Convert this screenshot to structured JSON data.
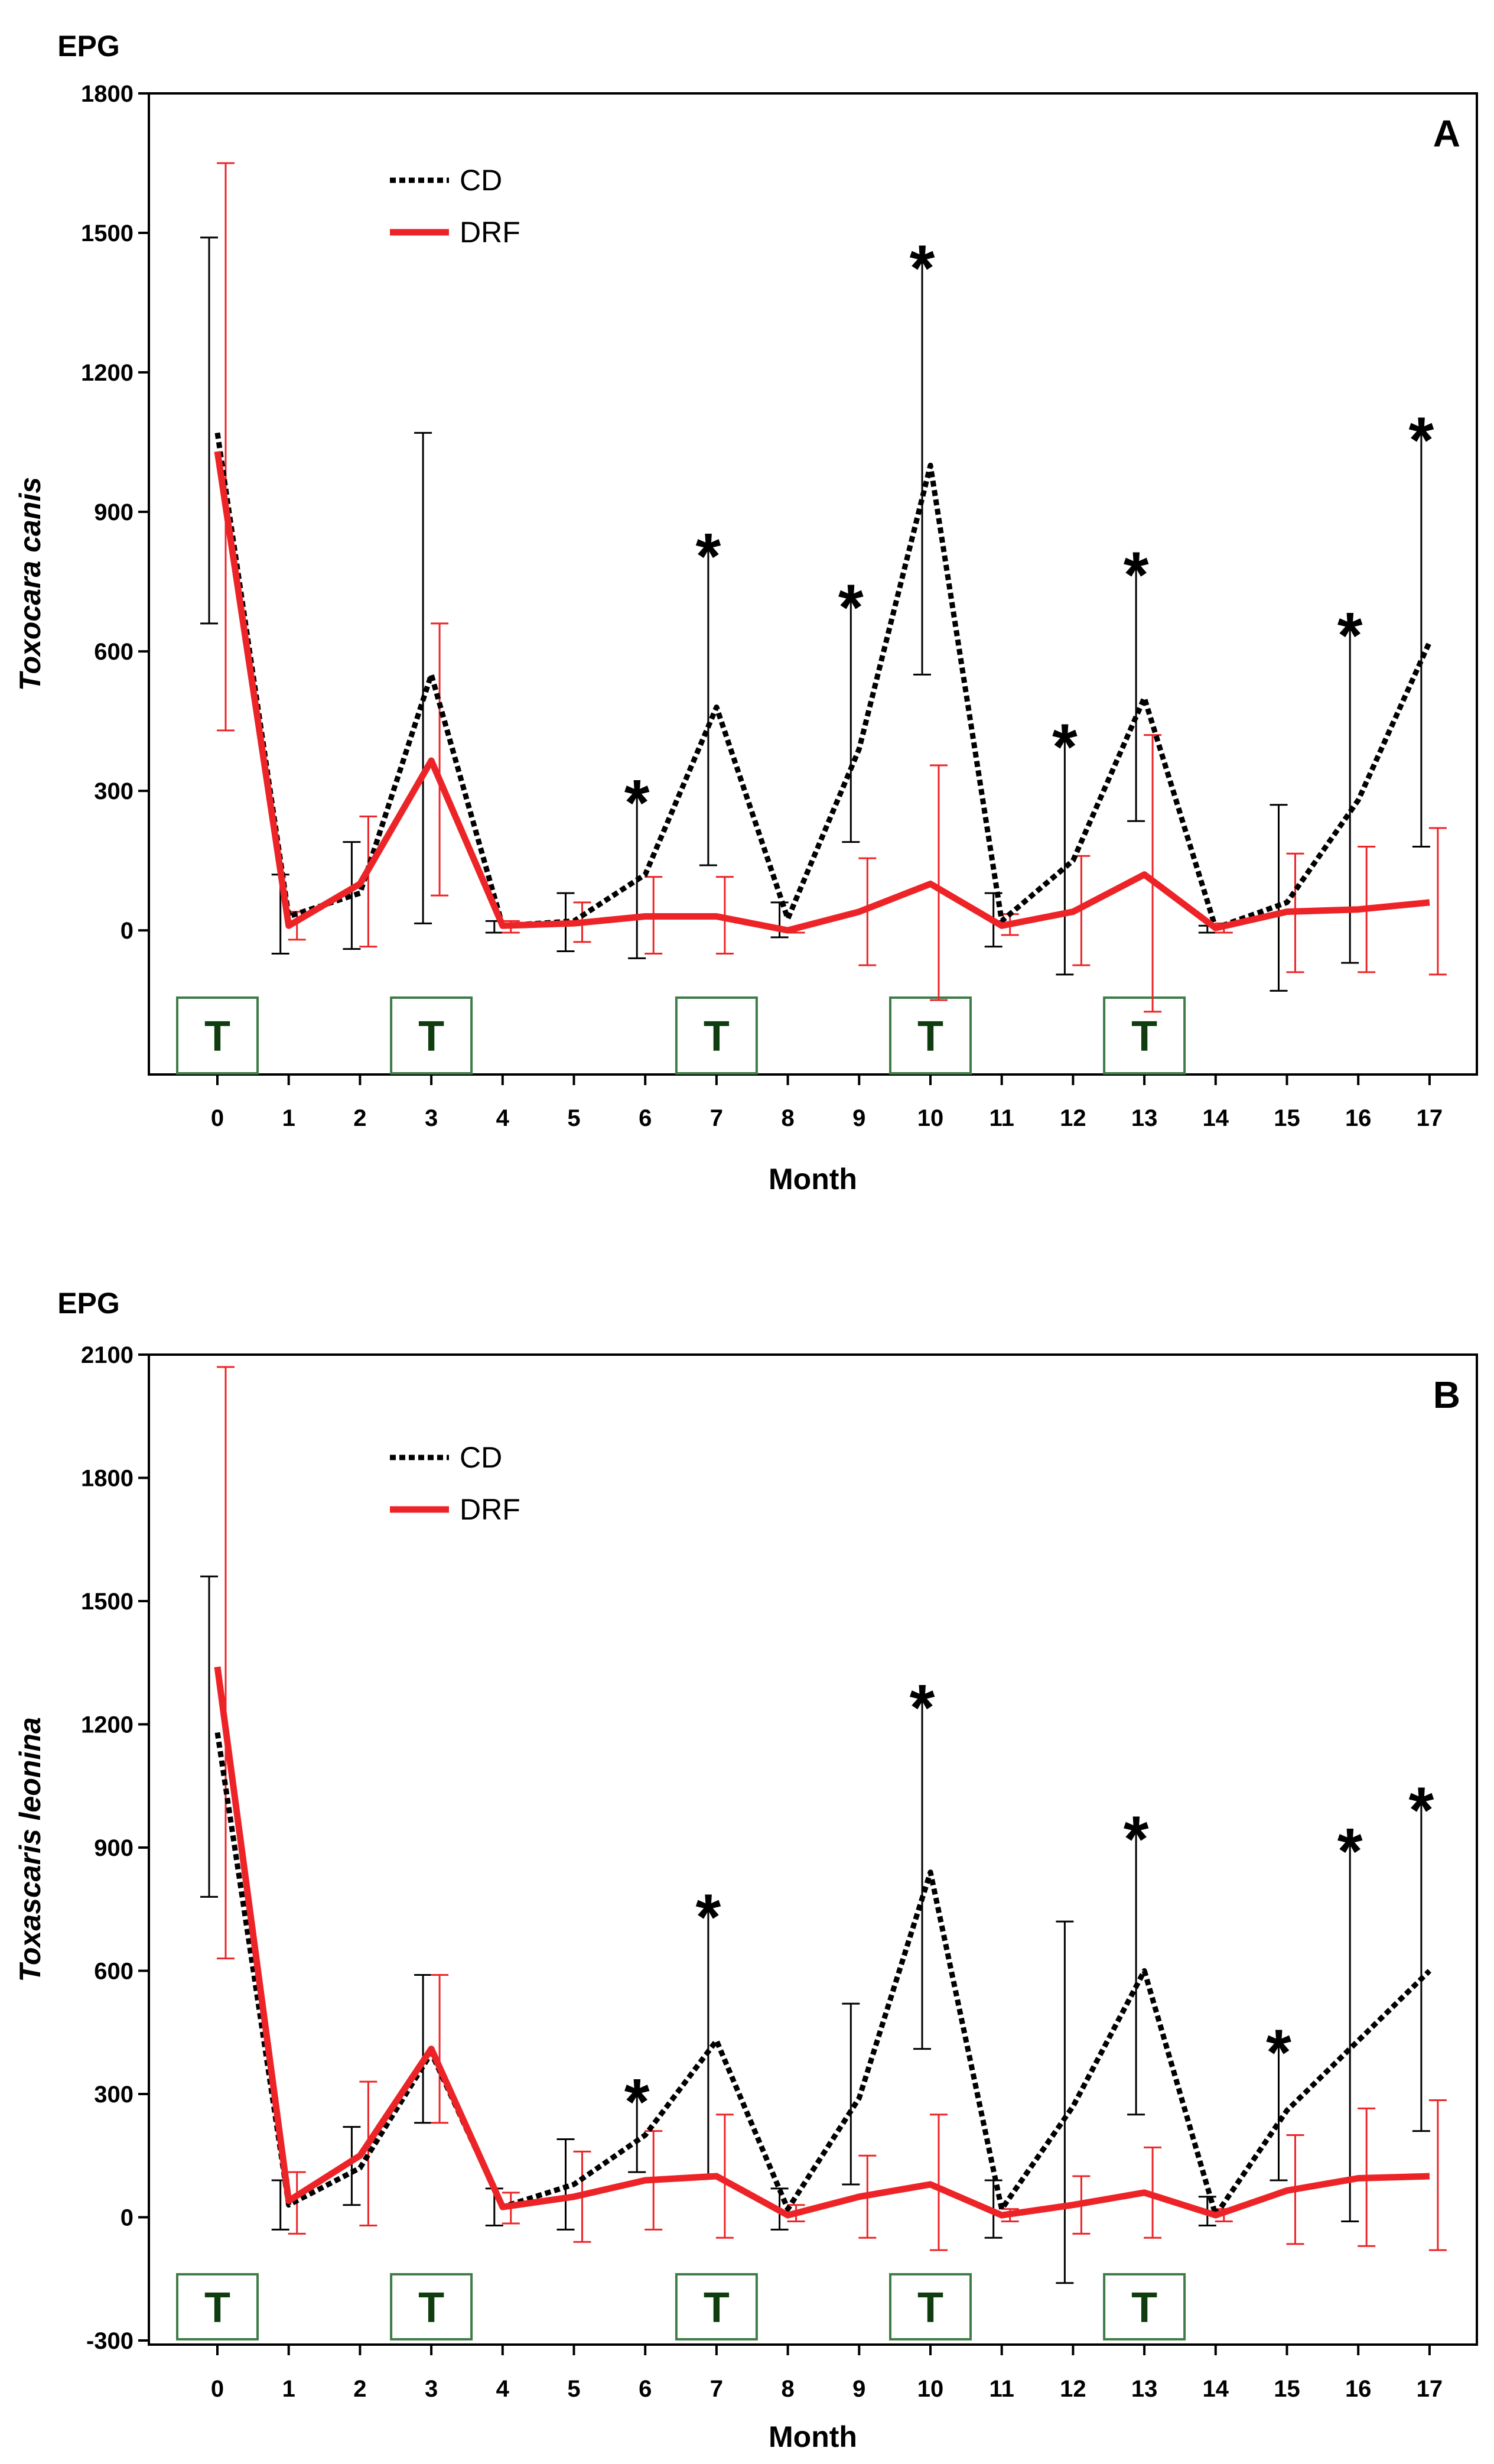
{
  "chart_data": [
    {
      "type": "line",
      "panel_label": "A",
      "unit_label": "EPG",
      "ylabel": "Toxocara canis",
      "xlabel": "Month",
      "x": [
        0,
        1,
        2,
        3,
        4,
        5,
        6,
        7,
        8,
        9,
        10,
        11,
        12,
        13,
        14,
        15,
        16,
        17
      ],
      "ylim": [
        -310,
        1800
      ],
      "yticks": [
        0,
        300,
        600,
        900,
        1200,
        1500,
        1800
      ],
      "grid": false,
      "legend": "top-left",
      "series": [
        {
          "name": "CD",
          "color": "#000000",
          "dash": "dotted",
          "values": [
            1070,
            30,
            80,
            550,
            10,
            20,
            120,
            480,
            25,
            390,
            1000,
            20,
            150,
            500,
            5,
            60,
            280,
            620
          ],
          "err_low": [
            660,
            -50,
            -40,
            15,
            -5,
            -45,
            -60,
            140,
            -15,
            190,
            550,
            -35,
            -95,
            235,
            -5,
            -130,
            -70,
            180
          ],
          "err_high": [
            1490,
            120,
            190,
            1070,
            20,
            80,
            300,
            830,
            60,
            720,
            1450,
            80,
            420,
            790,
            10,
            270,
            660,
            1080
          ]
        },
        {
          "name": "DRF",
          "color": "#ed2427",
          "dash": "solid",
          "values": [
            1030,
            10,
            100,
            365,
            10,
            15,
            30,
            30,
            0,
            40,
            100,
            10,
            40,
            120,
            5,
            40,
            45,
            60
          ],
          "err_low": [
            430,
            -20,
            -35,
            75,
            -5,
            -25,
            -50,
            -50,
            -5,
            -75,
            -150,
            -10,
            -75,
            -175,
            -5,
            -90,
            -90,
            -95
          ],
          "err_high": [
            1650,
            40,
            245,
            660,
            20,
            60,
            115,
            115,
            5,
            155,
            355,
            35,
            160,
            420,
            15,
            165,
            180,
            220
          ]
        }
      ],
      "significance_marker": "*",
      "significant_months": [
        6,
        7,
        9,
        10,
        12,
        13,
        16,
        17
      ],
      "treatment_marker": "T",
      "treatment_months": [
        0,
        3,
        7,
        10,
        13
      ]
    },
    {
      "type": "line",
      "panel_label": "B",
      "unit_label": "EPG",
      "ylabel": "Toxascaris leonina",
      "xlabel": "Month",
      "x": [
        0,
        1,
        2,
        3,
        4,
        5,
        6,
        7,
        8,
        9,
        10,
        11,
        12,
        13,
        14,
        15,
        16,
        17
      ],
      "ylim": [
        -310,
        2100
      ],
      "yticks": [
        -300,
        0,
        300,
        600,
        900,
        1200,
        1500,
        1800,
        2100
      ],
      "grid": false,
      "legend": "top-left",
      "series": [
        {
          "name": "CD",
          "color": "#000000",
          "dash": "dotted",
          "values": [
            1180,
            30,
            120,
            400,
            25,
            80,
            200,
            430,
            20,
            290,
            840,
            20,
            270,
            600,
            5,
            260,
            430,
            600
          ],
          "err_low": [
            780,
            -30,
            30,
            230,
            -20,
            -30,
            110,
            100,
            -30,
            80,
            410,
            -50,
            -160,
            250,
            -20,
            90,
            -10,
            210
          ],
          "err_high": [
            1560,
            90,
            220,
            590,
            70,
            190,
            310,
            760,
            70,
            520,
            1270,
            90,
            720,
            950,
            50,
            430,
            920,
            1020
          ]
        },
        {
          "name": "DRF",
          "color": "#ed2427",
          "dash": "solid",
          "values": [
            1340,
            40,
            150,
            410,
            25,
            50,
            90,
            100,
            5,
            50,
            80,
            5,
            30,
            60,
            5,
            65,
            95,
            100
          ],
          "err_low": [
            630,
            -40,
            -20,
            230,
            -15,
            -60,
            -30,
            -50,
            -10,
            -50,
            -80,
            -10,
            -40,
            -50,
            -10,
            -65,
            -70,
            -80
          ],
          "err_high": [
            2070,
            110,
            330,
            590,
            60,
            160,
            210,
            250,
            30,
            150,
            250,
            20,
            100,
            170,
            20,
            200,
            265,
            285
          ]
        }
      ],
      "significance_marker": "*",
      "significant_months": [
        6,
        7,
        10,
        13,
        15,
        16,
        17
      ],
      "treatment_marker": "T",
      "treatment_months": [
        0,
        3,
        7,
        10,
        13
      ]
    }
  ]
}
